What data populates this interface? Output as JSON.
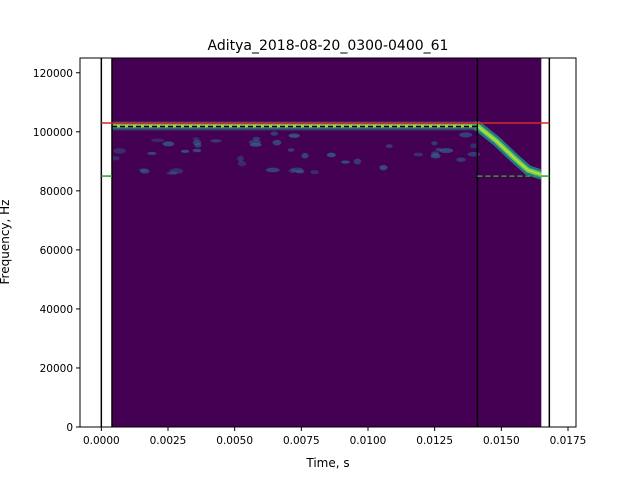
{
  "chart_data": {
    "type": "heatmap",
    "title": "Aditya_2018-08-20_0300-0400_61",
    "xlabel": "Time, s",
    "ylabel": "Frequency, Hz",
    "xlim": [
      -0.0008,
      0.0178
    ],
    "ylim": [
      0,
      125000
    ],
    "xticks": [
      0.0,
      0.0025,
      0.005,
      0.0075,
      0.01,
      0.0125,
      0.015,
      0.0175
    ],
    "xtick_labels": [
      "0.0000",
      "0.0025",
      "0.0050",
      "0.0075",
      "0.0100",
      "0.0125",
      "0.0150",
      "0.0175"
    ],
    "yticks": [
      0,
      20000,
      40000,
      60000,
      80000,
      100000,
      120000
    ],
    "ytick_labels": [
      "0",
      "20000",
      "40000",
      "60000",
      "80000",
      "100000",
      "120000"
    ],
    "spectrogram_extent": {
      "t_start": 0.0004,
      "t_end": 0.0165,
      "f_min": 0,
      "f_max": 125000
    },
    "background_color": "#440154",
    "colormap": "viridis",
    "features": [
      {
        "name": "flat band",
        "t_start": 0.0004,
        "t_end": 0.0141,
        "f": 102000
      },
      {
        "name": "chirp",
        "t": [
          0.0141,
          0.0148,
          0.0155,
          0.016,
          0.0165
        ],
        "f": [
          102000,
          97000,
          91000,
          87000,
          85500
        ]
      }
    ],
    "vertical_lines": [
      {
        "x": 0.0,
        "color": "#000000"
      },
      {
        "x": 0.0004,
        "color": "#000000"
      },
      {
        "x": 0.0141,
        "color": "#000000"
      },
      {
        "x": 0.0168,
        "color": "#000000"
      }
    ],
    "horizontal_segments": [
      {
        "x0": 0.0,
        "x1": 0.0168,
        "y": 103000,
        "color": "#d62728",
        "style": "solid"
      },
      {
        "x0": 0.0,
        "x1": 0.0004,
        "y": 85000,
        "color": "#2ca02c",
        "style": "solid"
      },
      {
        "x0": 0.0165,
        "x1": 0.0168,
        "y": 85000,
        "color": "#2ca02c",
        "style": "solid"
      },
      {
        "x0": 0.0004,
        "x1": 0.0141,
        "y": 101800,
        "color": "#000000",
        "style": "dashed"
      },
      {
        "x0": 0.0141,
        "x1": 0.0165,
        "y": 85000,
        "color": "#2ca02c",
        "style": "dashed"
      }
    ]
  }
}
